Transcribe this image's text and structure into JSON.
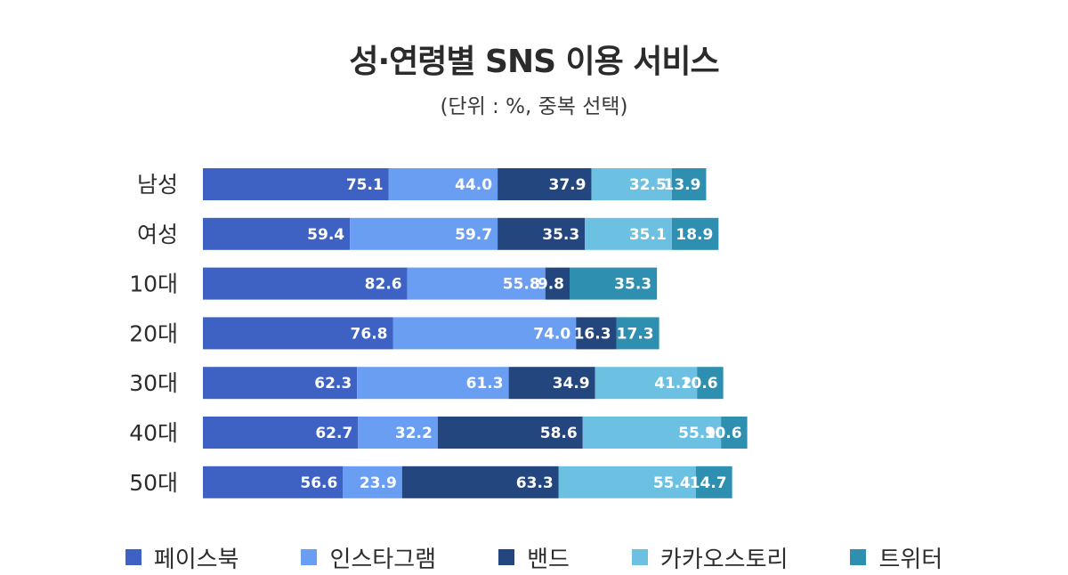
{
  "title": "성·연령별 SNS 이용 서비스",
  "subtitle": "(단위 : %, 중복 선택)",
  "chart_data": {
    "type": "bar",
    "orientation": "horizontal",
    "stacked": true,
    "title": "성·연령별 SNS 이용 서비스",
    "subtitle": "(단위 : %, 중복 선택)",
    "xlabel": "",
    "ylabel": "",
    "categories": [
      "남성",
      "여성",
      "10대",
      "20대",
      "30대",
      "40대",
      "50대"
    ],
    "series": [
      {
        "name": "페이스북",
        "color": "#3d62c4",
        "values": [
          75.1,
          59.4,
          82.6,
          76.8,
          62.3,
          62.7,
          56.6
        ]
      },
      {
        "name": "인스타그램",
        "color": "#6a9ef2",
        "values": [
          44.0,
          59.7,
          55.8,
          74.0,
          61.3,
          32.2,
          23.9
        ]
      },
      {
        "name": "밴드",
        "color": "#23467f",
        "values": [
          37.9,
          35.3,
          9.8,
          16.3,
          34.9,
          58.6,
          63.3
        ]
      },
      {
        "name": "카카오스토리",
        "color": "#6cc1e2",
        "values": [
          32.5,
          35.1,
          null,
          null,
          41.2,
          55.9,
          55.4
        ]
      },
      {
        "name": "트위터",
        "color": "#2f8fb0",
        "values": [
          13.9,
          18.9,
          35.3,
          17.3,
          10.6,
          10.6,
          14.7
        ]
      }
    ],
    "label_hidden": [
      [
        false,
        false,
        false,
        false,
        false
      ],
      [
        false,
        false,
        false,
        false,
        false
      ],
      [
        false,
        false,
        false,
        true,
        false
      ],
      [
        false,
        false,
        false,
        true,
        false
      ],
      [
        false,
        false,
        false,
        false,
        false
      ],
      [
        false,
        false,
        false,
        false,
        false
      ],
      [
        false,
        false,
        false,
        false,
        false
      ]
    ],
    "grid": false,
    "legend": "bottom"
  }
}
